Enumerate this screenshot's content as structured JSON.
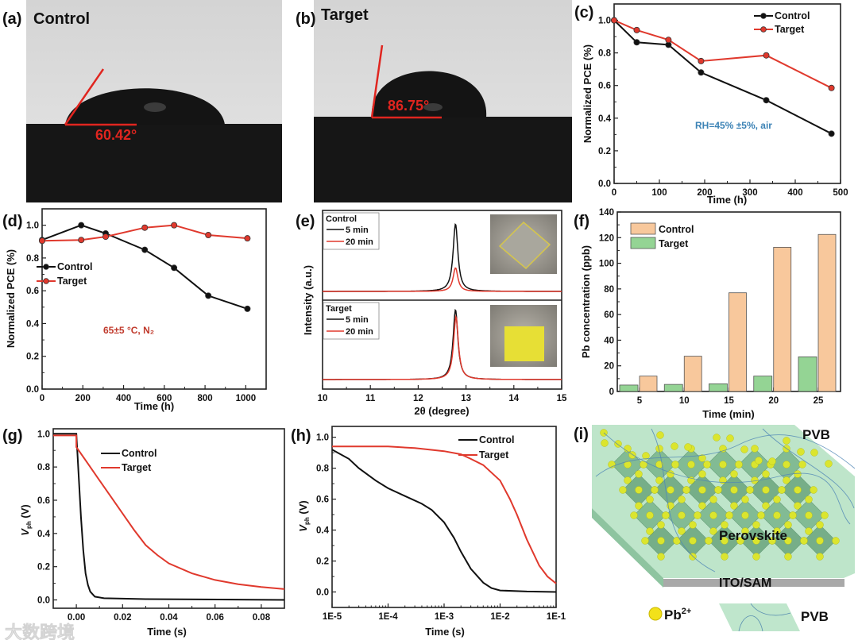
{
  "panels": {
    "a": {
      "label": "(a)",
      "title": "Control",
      "angle": "60.42°"
    },
    "b": {
      "label": "(b)",
      "title": "Target",
      "angle": "86.75°"
    }
  },
  "colors": {
    "control": "#111111",
    "target": "#e0392d",
    "bar_control": "#f8c89c",
    "bar_target": "#94d494",
    "annot_c": "#3b82b5",
    "annot_d": "#c0392b"
  },
  "chart_data": [
    {
      "id": "c",
      "label": "(c)",
      "type": "line",
      "xlabel": "Time (h)",
      "ylabel": "Normalized PCE (%)",
      "xlim": [
        0,
        500
      ],
      "ylim": [
        0,
        1.1
      ],
      "xticks": [
        0,
        100,
        200,
        300,
        400,
        500
      ],
      "xtick_labels": [
        "0",
        "100",
        "200",
        "300",
        "400",
        "500"
      ],
      "yticks": [
        0,
        0.2,
        0.4,
        0.6,
        0.8,
        1.0
      ],
      "ytick_labels": [
        "0.0",
        "0.2",
        "0.4",
        "0.6",
        "0.8",
        "1.0"
      ],
      "legend_position": "top-right",
      "annotation": "RH=45% ±5%, air",
      "series": [
        {
          "name": "Control",
          "points": [
            [
              0,
              1.0
            ],
            [
              50,
              0.865
            ],
            [
              120,
              0.85
            ],
            [
              192,
              0.68
            ],
            [
              336,
              0.51
            ],
            [
              480,
              0.305
            ]
          ]
        },
        {
          "name": "Target",
          "points": [
            [
              0,
              1.0
            ],
            [
              50,
              0.94
            ],
            [
              120,
              0.88
            ],
            [
              192,
              0.75
            ],
            [
              336,
              0.785
            ],
            [
              480,
              0.585
            ]
          ]
        }
      ]
    },
    {
      "id": "d",
      "label": "(d)",
      "type": "line",
      "xlabel": "Time (h)",
      "ylabel": "Normalized PCE (%)",
      "xlim": [
        0,
        1100
      ],
      "ylim": [
        0,
        1.1
      ],
      "xticks": [
        0,
        200,
        400,
        600,
        800,
        1000
      ],
      "xtick_labels": [
        "0",
        "200",
        "400",
        "600",
        "800",
        "1000"
      ],
      "yticks": [
        0,
        0.2,
        0.4,
        0.6,
        0.8,
        1.0
      ],
      "ytick_labels": [
        "0.0",
        "0.2",
        "0.4",
        "0.6",
        "0.8",
        "1.0"
      ],
      "legend_position": "middle-left",
      "annotation": "65±5 °C, N₂",
      "series": [
        {
          "name": "Control",
          "points": [
            [
              0,
              0.91
            ],
            [
              192,
              1.0
            ],
            [
              312,
              0.95
            ],
            [
              504,
              0.85
            ],
            [
              648,
              0.74
            ],
            [
              816,
              0.57
            ],
            [
              1008,
              0.49
            ]
          ]
        },
        {
          "name": "Target",
          "points": [
            [
              0,
              0.905
            ],
            [
              192,
              0.91
            ],
            [
              312,
              0.93
            ],
            [
              504,
              0.985
            ],
            [
              648,
              1.0
            ],
            [
              816,
              0.94
            ],
            [
              1008,
              0.92
            ]
          ]
        }
      ]
    },
    {
      "id": "e",
      "label": "(e)",
      "type": "line",
      "xlabel": "2θ (degree)",
      "ylabel": "Intensity (a.u.)",
      "xlim": [
        10,
        15
      ],
      "xticks": [
        10,
        11,
        12,
        13,
        14,
        15
      ],
      "xtick_labels": [
        "10",
        "11",
        "12",
        "13",
        "14",
        "15"
      ],
      "legend_position": "top-left",
      "subplots": [
        {
          "name": "Control",
          "series": [
            {
              "name": "5 min",
              "peak_center": 12.78,
              "peak_height": 1.0,
              "fwhm": 0.12
            },
            {
              "name": "20 min",
              "peak_center": 12.78,
              "peak_height": 0.35,
              "fwhm": 0.12
            }
          ]
        },
        {
          "name": "Target",
          "series": [
            {
              "name": "5 min",
              "peak_center": 12.78,
              "peak_height": 1.0,
              "fwhm": 0.12
            },
            {
              "name": "20 min",
              "peak_center": 12.79,
              "peak_height": 0.9,
              "fwhm": 0.12
            }
          ]
        }
      ]
    },
    {
      "id": "f",
      "label": "(f)",
      "type": "bar",
      "xlabel": "Time (min)",
      "ylabel": "Pb concentration (ppb)",
      "categories": [
        "5",
        "10",
        "15",
        "20",
        "25"
      ],
      "ylim": [
        0,
        140
      ],
      "yticks": [
        0,
        20,
        40,
        60,
        80,
        100,
        120,
        140
      ],
      "ytick_labels": [
        "0",
        "20",
        "40",
        "60",
        "80",
        "100",
        "120",
        "140"
      ],
      "legend_position": "top-left",
      "series": [
        {
          "name": "Control",
          "values": [
            12,
            27.5,
            77,
            112.5,
            122.5
          ]
        },
        {
          "name": "Target",
          "values": [
            5,
            5.5,
            6,
            12,
            27
          ]
        }
      ]
    },
    {
      "id": "g",
      "label": "(g)",
      "type": "line",
      "xlabel": "Time (s)",
      "ylabel_parts": [
        "V",
        "ph",
        " (V)"
      ],
      "xlim": [
        -0.01,
        0.09
      ],
      "ylim": [
        -0.05,
        1.03
      ],
      "xticks": [
        0,
        0.02,
        0.04,
        0.06,
        0.08
      ],
      "xtick_labels": [
        "0.00",
        "0.02",
        "0.04",
        "0.06",
        "0.08"
      ],
      "yticks": [
        0,
        0.2,
        0.4,
        0.6,
        0.8,
        1.0
      ],
      "ytick_labels": [
        "0.0",
        "0.2",
        "0.4",
        "0.6",
        "0.8",
        "1.0"
      ],
      "legend_position": "top-center",
      "series": [
        {
          "name": "Control",
          "points": [
            [
              -0.01,
              1.0
            ],
            [
              0,
              1.0
            ],
            [
              0.001,
              0.75
            ],
            [
              0.002,
              0.5
            ],
            [
              0.003,
              0.3
            ],
            [
              0.004,
              0.16
            ],
            [
              0.005,
              0.09
            ],
            [
              0.006,
              0.05
            ],
            [
              0.008,
              0.02
            ],
            [
              0.012,
              0.01
            ],
            [
              0.03,
              0.005
            ],
            [
              0.09,
              0.0
            ]
          ]
        },
        {
          "name": "Target",
          "points": [
            [
              -0.01,
              0.99
            ],
            [
              0,
              0.99
            ],
            [
              0,
              0.92
            ],
            [
              0.005,
              0.82
            ],
            [
              0.01,
              0.72
            ],
            [
              0.015,
              0.62
            ],
            [
              0.02,
              0.52
            ],
            [
              0.025,
              0.42
            ],
            [
              0.03,
              0.33
            ],
            [
              0.035,
              0.27
            ],
            [
              0.04,
              0.22
            ],
            [
              0.05,
              0.16
            ],
            [
              0.06,
              0.12
            ],
            [
              0.07,
              0.095
            ],
            [
              0.08,
              0.078
            ],
            [
              0.09,
              0.065
            ]
          ]
        }
      ]
    },
    {
      "id": "h",
      "label": "(h)",
      "type": "line",
      "xscale": "log",
      "xlabel": "Time (s)",
      "ylabel_parts": [
        "V",
        "ph",
        " (V)"
      ],
      "xlim": [
        1e-05,
        0.1
      ],
      "ylim": [
        -0.1,
        1.07
      ],
      "xticks": [
        1e-05,
        0.0001,
        0.001,
        0.01,
        0.1
      ],
      "xtick_labels": [
        "1E-5",
        "1E-4",
        "1E-3",
        "1E-2",
        "1E-1"
      ],
      "yticks": [
        0,
        0.2,
        0.4,
        0.6,
        0.8,
        1.0
      ],
      "ytick_labels": [
        "0.0",
        "0.2",
        "0.4",
        "0.6",
        "0.8",
        "1.0"
      ],
      "legend_position": "top-right",
      "series": [
        {
          "name": "Control",
          "points": [
            [
              1e-05,
              0.92
            ],
            [
              2e-05,
              0.86
            ],
            [
              3e-05,
              0.8
            ],
            [
              6e-05,
              0.72
            ],
            [
              0.0001,
              0.67
            ],
            [
              0.0002,
              0.62
            ],
            [
              0.0004,
              0.57
            ],
            [
              0.0006,
              0.53
            ],
            [
              0.001,
              0.45
            ],
            [
              0.0015,
              0.35
            ],
            [
              0.002,
              0.26
            ],
            [
              0.003,
              0.15
            ],
            [
              0.005,
              0.06
            ],
            [
              0.007,
              0.025
            ],
            [
              0.01,
              0.01
            ],
            [
              0.03,
              0.003
            ],
            [
              0.1,
              0.0
            ]
          ]
        },
        {
          "name": "Target",
          "points": [
            [
              1e-05,
              0.94
            ],
            [
              0.0001,
              0.94
            ],
            [
              0.0003,
              0.93
            ],
            [
              0.001,
              0.91
            ],
            [
              0.002,
              0.89
            ],
            [
              0.003,
              0.86
            ],
            [
              0.005,
              0.82
            ],
            [
              0.01,
              0.72
            ],
            [
              0.015,
              0.6
            ],
            [
              0.02,
              0.5
            ],
            [
              0.03,
              0.34
            ],
            [
              0.05,
              0.17
            ],
            [
              0.07,
              0.1
            ],
            [
              0.1,
              0.055
            ]
          ]
        }
      ]
    }
  ],
  "diagram": {
    "label": "(i)",
    "pvb_top": "PVB",
    "perovskite": "Perovskite",
    "ito": "ITO/SAM",
    "legend_pb": "Pb",
    "legend_pb_sup": "2+",
    "legend_pvb": "PVB"
  },
  "watermark": "大数跨境"
}
